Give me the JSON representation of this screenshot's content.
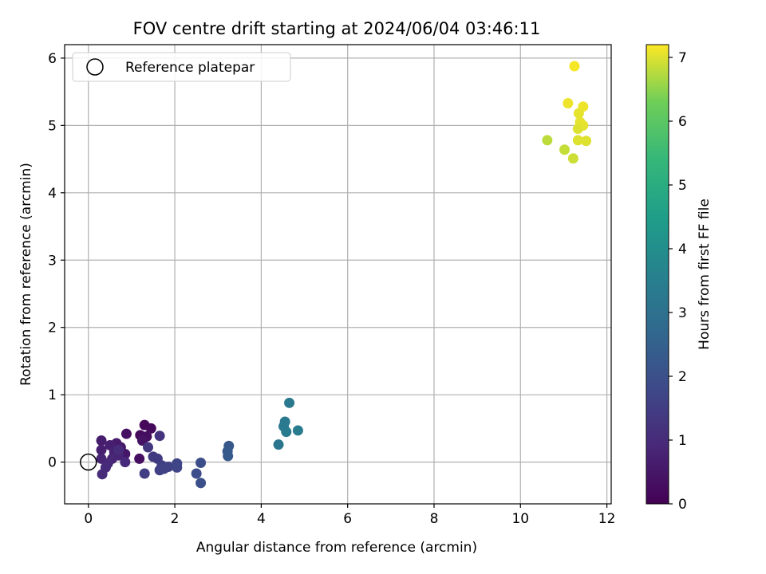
{
  "chart_data": {
    "type": "scatter",
    "title": "FOV centre drift starting at 2024/06/04 03:46:11",
    "xlabel": "Angular distance from reference (arcmin)",
    "ylabel": "Rotation from reference (arcmin)",
    "xlim": [
      -0.55,
      12.1
    ],
    "ylim": [
      -0.62,
      6.2
    ],
    "xticks": [
      0,
      2,
      4,
      6,
      8,
      10,
      12
    ],
    "yticks": [
      0,
      1,
      2,
      3,
      4,
      5,
      6
    ],
    "grid": true,
    "legend": {
      "placement": "top-left",
      "entries": [
        "Reference platepar"
      ]
    },
    "reference_point": {
      "label": "Reference platepar",
      "x": 0,
      "y": 0
    },
    "colorbar": {
      "label": "Hours from first FF file",
      "colormap": "viridis",
      "range": [
        0,
        7.2
      ],
      "ticks": [
        0,
        1,
        2,
        3,
        4,
        5,
        6,
        7
      ]
    },
    "points": [
      {
        "x": 1.3,
        "y": 0.55,
        "t": 0.15
      },
      {
        "x": 1.45,
        "y": 0.5,
        "t": 0.2
      },
      {
        "x": 1.2,
        "y": 0.4,
        "t": 0.25
      },
      {
        "x": 1.35,
        "y": 0.38,
        "t": 0.3
      },
      {
        "x": 0.88,
        "y": 0.42,
        "t": 0.35
      },
      {
        "x": 1.18,
        "y": 0.05,
        "t": 0.3
      },
      {
        "x": 1.25,
        "y": 0.32,
        "t": 0.4
      },
      {
        "x": 0.85,
        "y": 0.12,
        "t": 0.5
      },
      {
        "x": 0.75,
        "y": 0.22,
        "t": 0.55
      },
      {
        "x": 0.65,
        "y": 0.28,
        "t": 0.6
      },
      {
        "x": 0.3,
        "y": 0.32,
        "t": 0.65
      },
      {
        "x": 0.5,
        "y": 0.25,
        "t": 0.7
      },
      {
        "x": 0.3,
        "y": 0.18,
        "t": 0.7
      },
      {
        "x": 0.6,
        "y": 0.15,
        "t": 0.75
      },
      {
        "x": 0.7,
        "y": 0.1,
        "t": 0.8
      },
      {
        "x": 0.3,
        "y": 0.05,
        "t": 0.8
      },
      {
        "x": 0.55,
        "y": 0.05,
        "t": 0.85
      },
      {
        "x": 0.45,
        "y": -0.02,
        "t": 0.9
      },
      {
        "x": 0.85,
        "y": 0.0,
        "t": 0.95
      },
      {
        "x": 0.4,
        "y": -0.08,
        "t": 0.95
      },
      {
        "x": 0.32,
        "y": -0.18,
        "t": 1.0
      },
      {
        "x": 0.7,
        "y": 0.18,
        "t": 1.0
      },
      {
        "x": 1.65,
        "y": 0.39,
        "t": 1.2
      },
      {
        "x": 1.38,
        "y": 0.22,
        "t": 1.3
      },
      {
        "x": 1.5,
        "y": 0.08,
        "t": 1.4
      },
      {
        "x": 1.6,
        "y": 0.05,
        "t": 1.4
      },
      {
        "x": 1.3,
        "y": -0.17,
        "t": 1.5
      },
      {
        "x": 1.7,
        "y": -0.05,
        "t": 1.5
      },
      {
        "x": 1.65,
        "y": -0.12,
        "t": 1.55
      },
      {
        "x": 1.75,
        "y": -0.1,
        "t": 1.6
      },
      {
        "x": 1.85,
        "y": -0.07,
        "t": 1.6
      },
      {
        "x": 2.05,
        "y": -0.02,
        "t": 1.7
      },
      {
        "x": 2.05,
        "y": -0.08,
        "t": 1.7
      },
      {
        "x": 2.5,
        "y": -0.17,
        "t": 1.9
      },
      {
        "x": 2.6,
        "y": -0.01,
        "t": 1.95
      },
      {
        "x": 2.6,
        "y": -0.31,
        "t": 2.0
      },
      {
        "x": 3.25,
        "y": 0.24,
        "t": 2.2
      },
      {
        "x": 3.22,
        "y": 0.16,
        "t": 2.25
      },
      {
        "x": 3.23,
        "y": 0.09,
        "t": 2.3
      },
      {
        "x": 4.65,
        "y": 0.88,
        "t": 3.3
      },
      {
        "x": 4.4,
        "y": 0.26,
        "t": 3.2
      },
      {
        "x": 4.55,
        "y": 0.6,
        "t": 3.3
      },
      {
        "x": 4.52,
        "y": 0.53,
        "t": 3.3
      },
      {
        "x": 4.58,
        "y": 0.45,
        "t": 3.35
      },
      {
        "x": 4.85,
        "y": 0.47,
        "t": 3.35
      },
      {
        "x": 11.25,
        "y": 5.88,
        "t": 7.15
      },
      {
        "x": 11.1,
        "y": 5.33,
        "t": 7.1
      },
      {
        "x": 11.45,
        "y": 5.28,
        "t": 7.1
      },
      {
        "x": 11.35,
        "y": 5.18,
        "t": 7.05
      },
      {
        "x": 11.38,
        "y": 5.05,
        "t": 7.05
      },
      {
        "x": 11.45,
        "y": 5.0,
        "t": 7.05
      },
      {
        "x": 11.33,
        "y": 4.95,
        "t": 7.0
      },
      {
        "x": 11.33,
        "y": 4.78,
        "t": 7.0
      },
      {
        "x": 11.52,
        "y": 4.77,
        "t": 7.0
      },
      {
        "x": 10.62,
        "y": 4.78,
        "t": 6.8
      },
      {
        "x": 11.02,
        "y": 4.64,
        "t": 6.85
      },
      {
        "x": 11.22,
        "y": 4.51,
        "t": 6.9
      }
    ]
  }
}
